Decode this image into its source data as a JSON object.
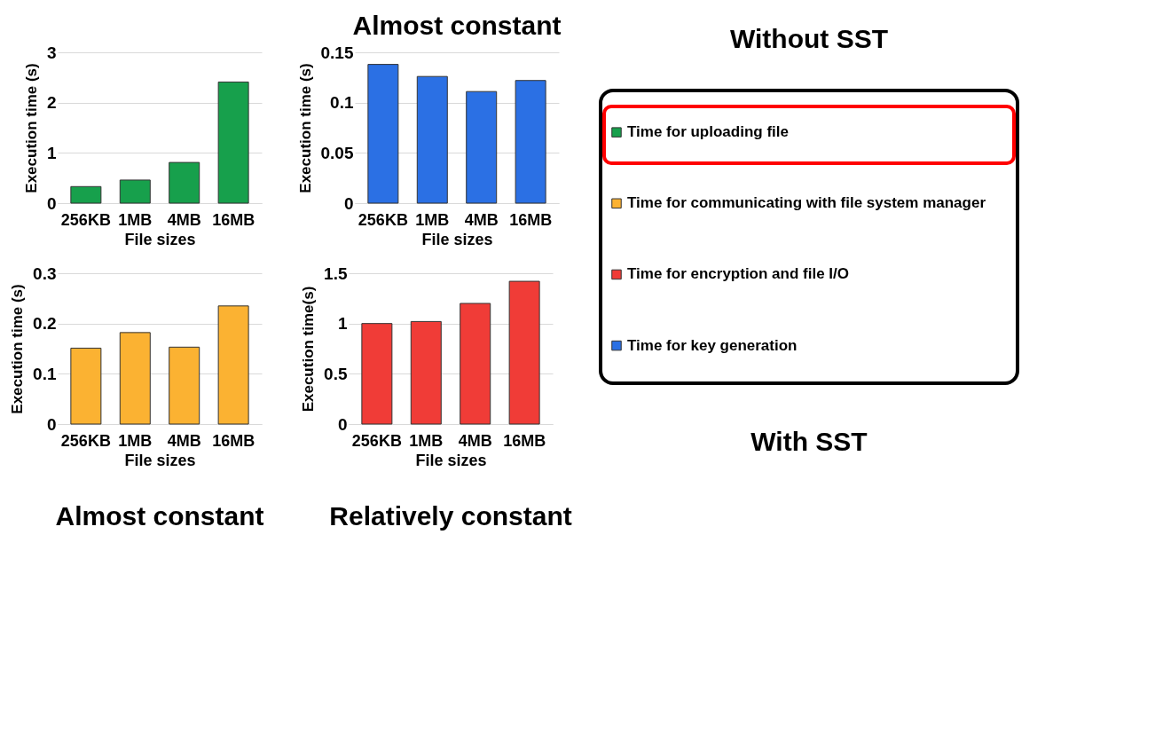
{
  "chart_data": [
    {
      "type": "bar",
      "xlabel": "File sizes",
      "ylabel": "Execution time (s)",
      "categories": [
        "256KB",
        "1MB",
        "4MB",
        "16MB"
      ],
      "series": [
        {
          "name": "Time for uploading file",
          "color": "#17a04c",
          "values": [
            0.33,
            0.46,
            0.81,
            2.41
          ]
        }
      ],
      "ylim": [
        0,
        3
      ],
      "yticks": [
        0,
        1,
        2,
        3
      ],
      "grid": "y",
      "legend": "right",
      "annotations": [
        "Without SST"
      ]
    },
    {
      "type": "bar",
      "xlabel": "File sizes",
      "ylabel": "Execution time (s)",
      "categories": [
        "256KB",
        "1MB",
        "4MB",
        "16MB"
      ],
      "series": [
        {
          "name": "Time for key generation",
          "color": "#2b70e4",
          "values": [
            0.138,
            0.126,
            0.111,
            0.122
          ]
        }
      ],
      "ylim": [
        0,
        0.15
      ],
      "yticks": [
        0,
        0.05,
        0.1,
        0.15
      ],
      "grid": "y",
      "legend": "right",
      "annotations": [
        "Almost constant",
        "With SST"
      ]
    },
    {
      "type": "bar",
      "xlabel": "File sizes",
      "ylabel": "Execution time (s)",
      "categories": [
        "256KB",
        "1MB",
        "4MB",
        "16MB"
      ],
      "series": [
        {
          "name": "Time for communicating with file system manager",
          "color": "#fbb232",
          "values": [
            0.151,
            0.182,
            0.153,
            0.235
          ]
        }
      ],
      "ylim": [
        0,
        0.3
      ],
      "yticks": [
        0,
        0.1,
        0.2,
        0.3
      ],
      "grid": "y",
      "legend": "right",
      "annotations": [
        "Almost constant"
      ]
    },
    {
      "type": "bar",
      "xlabel": "File sizes",
      "ylabel": "Execution time(s)",
      "categories": [
        "256KB",
        "1MB",
        "4MB",
        "16MB"
      ],
      "series": [
        {
          "name": "Time for encryption and file I/O",
          "color": "#f03c37",
          "values": [
            1.0,
            1.02,
            1.2,
            1.42
          ]
        }
      ],
      "ylim": [
        0,
        1.5
      ],
      "yticks": [
        0,
        0.5,
        1,
        1.5
      ],
      "grid": "y",
      "legend": "right",
      "annotations": [
        "Relatively constant"
      ]
    }
  ]
}
